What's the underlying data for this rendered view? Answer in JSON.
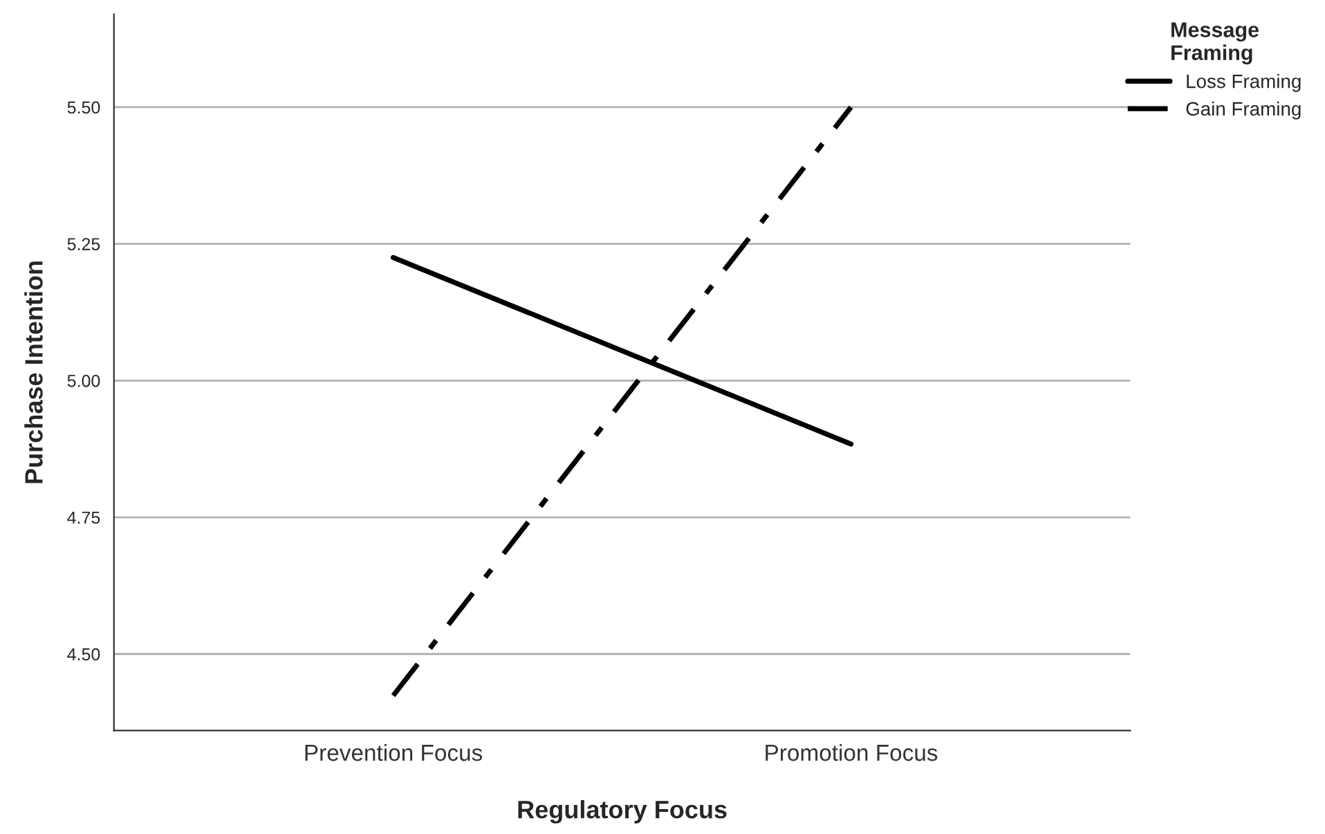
{
  "chart_data": {
    "type": "line",
    "xlabel": "Regulatory Focus",
    "ylabel": "Purchase Intention",
    "legend_title": "Message\nFraming",
    "categories": [
      "Prevention Focus",
      "Promotion Focus"
    ],
    "series": [
      {
        "name": "Loss Framing",
        "color": "#000000",
        "values": [
          5.225,
          4.884
        ],
        "line_style": "solid"
      },
      {
        "name": "Gain Framing",
        "color": "#000000",
        "values": [
          4.424,
          5.5
        ],
        "line_style": "dashdot"
      }
    ],
    "ylim": [
      4.36,
      5.67
    ],
    "yticks": [
      {
        "value": 4.5,
        "label": "4.50"
      },
      {
        "value": 4.75,
        "label": "4.75"
      },
      {
        "value": 5.0,
        "label": "5.00"
      },
      {
        "value": 5.25,
        "label": "5.25"
      },
      {
        "value": 5.5,
        "label": "5.50"
      }
    ],
    "grid": "y",
    "legend": "top right",
    "marker": "none"
  }
}
